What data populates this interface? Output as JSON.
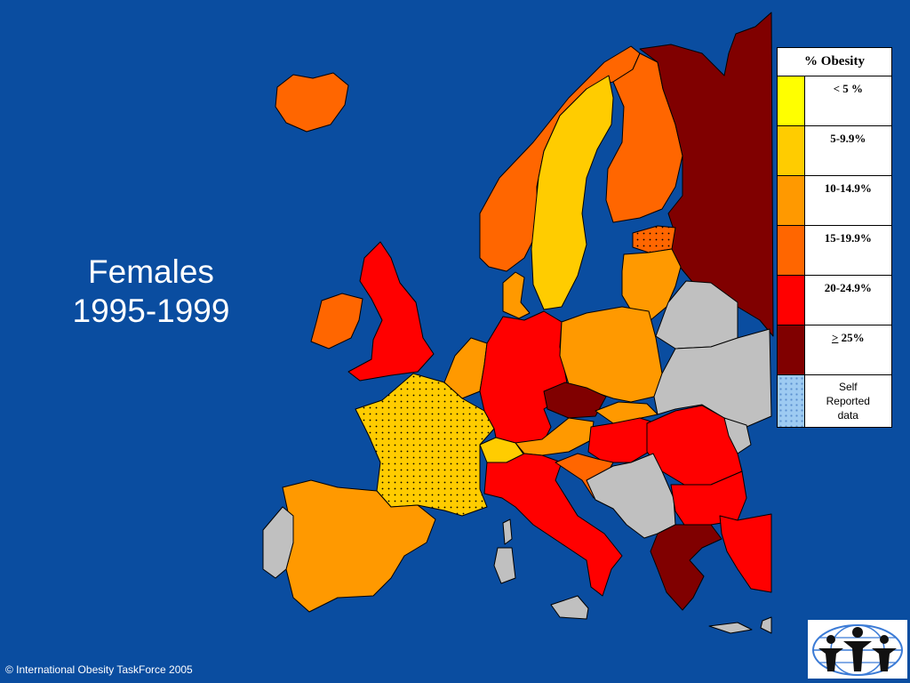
{
  "title": {
    "line1": "Females",
    "line2": "1995-1999"
  },
  "legend": {
    "heading": "% Obesity",
    "items": [
      {
        "label": "< 5 %",
        "color": "#ffff00"
      },
      {
        "label": "5-9.9%",
        "color": "#ffcc00"
      },
      {
        "label": "10-14.9%",
        "color": "#ff9900"
      },
      {
        "label": "15-19.9%",
        "color": "#ff6600"
      },
      {
        "label": "20-24.9%",
        "color": "#ff0000"
      },
      {
        "label": "> 25%",
        "color": "#800000"
      }
    ],
    "self_reported": {
      "line1": "Self",
      "line2": "Reported",
      "line3": "data"
    }
  },
  "colors": {
    "sea": "#0a4da0",
    "no_data": "#c0c0c0",
    "border": "#000000"
  },
  "footer": {
    "copyright": "© International Obesity TaskForce 2005"
  },
  "logo": {
    "icon": "iotf-logo-icon"
  }
}
